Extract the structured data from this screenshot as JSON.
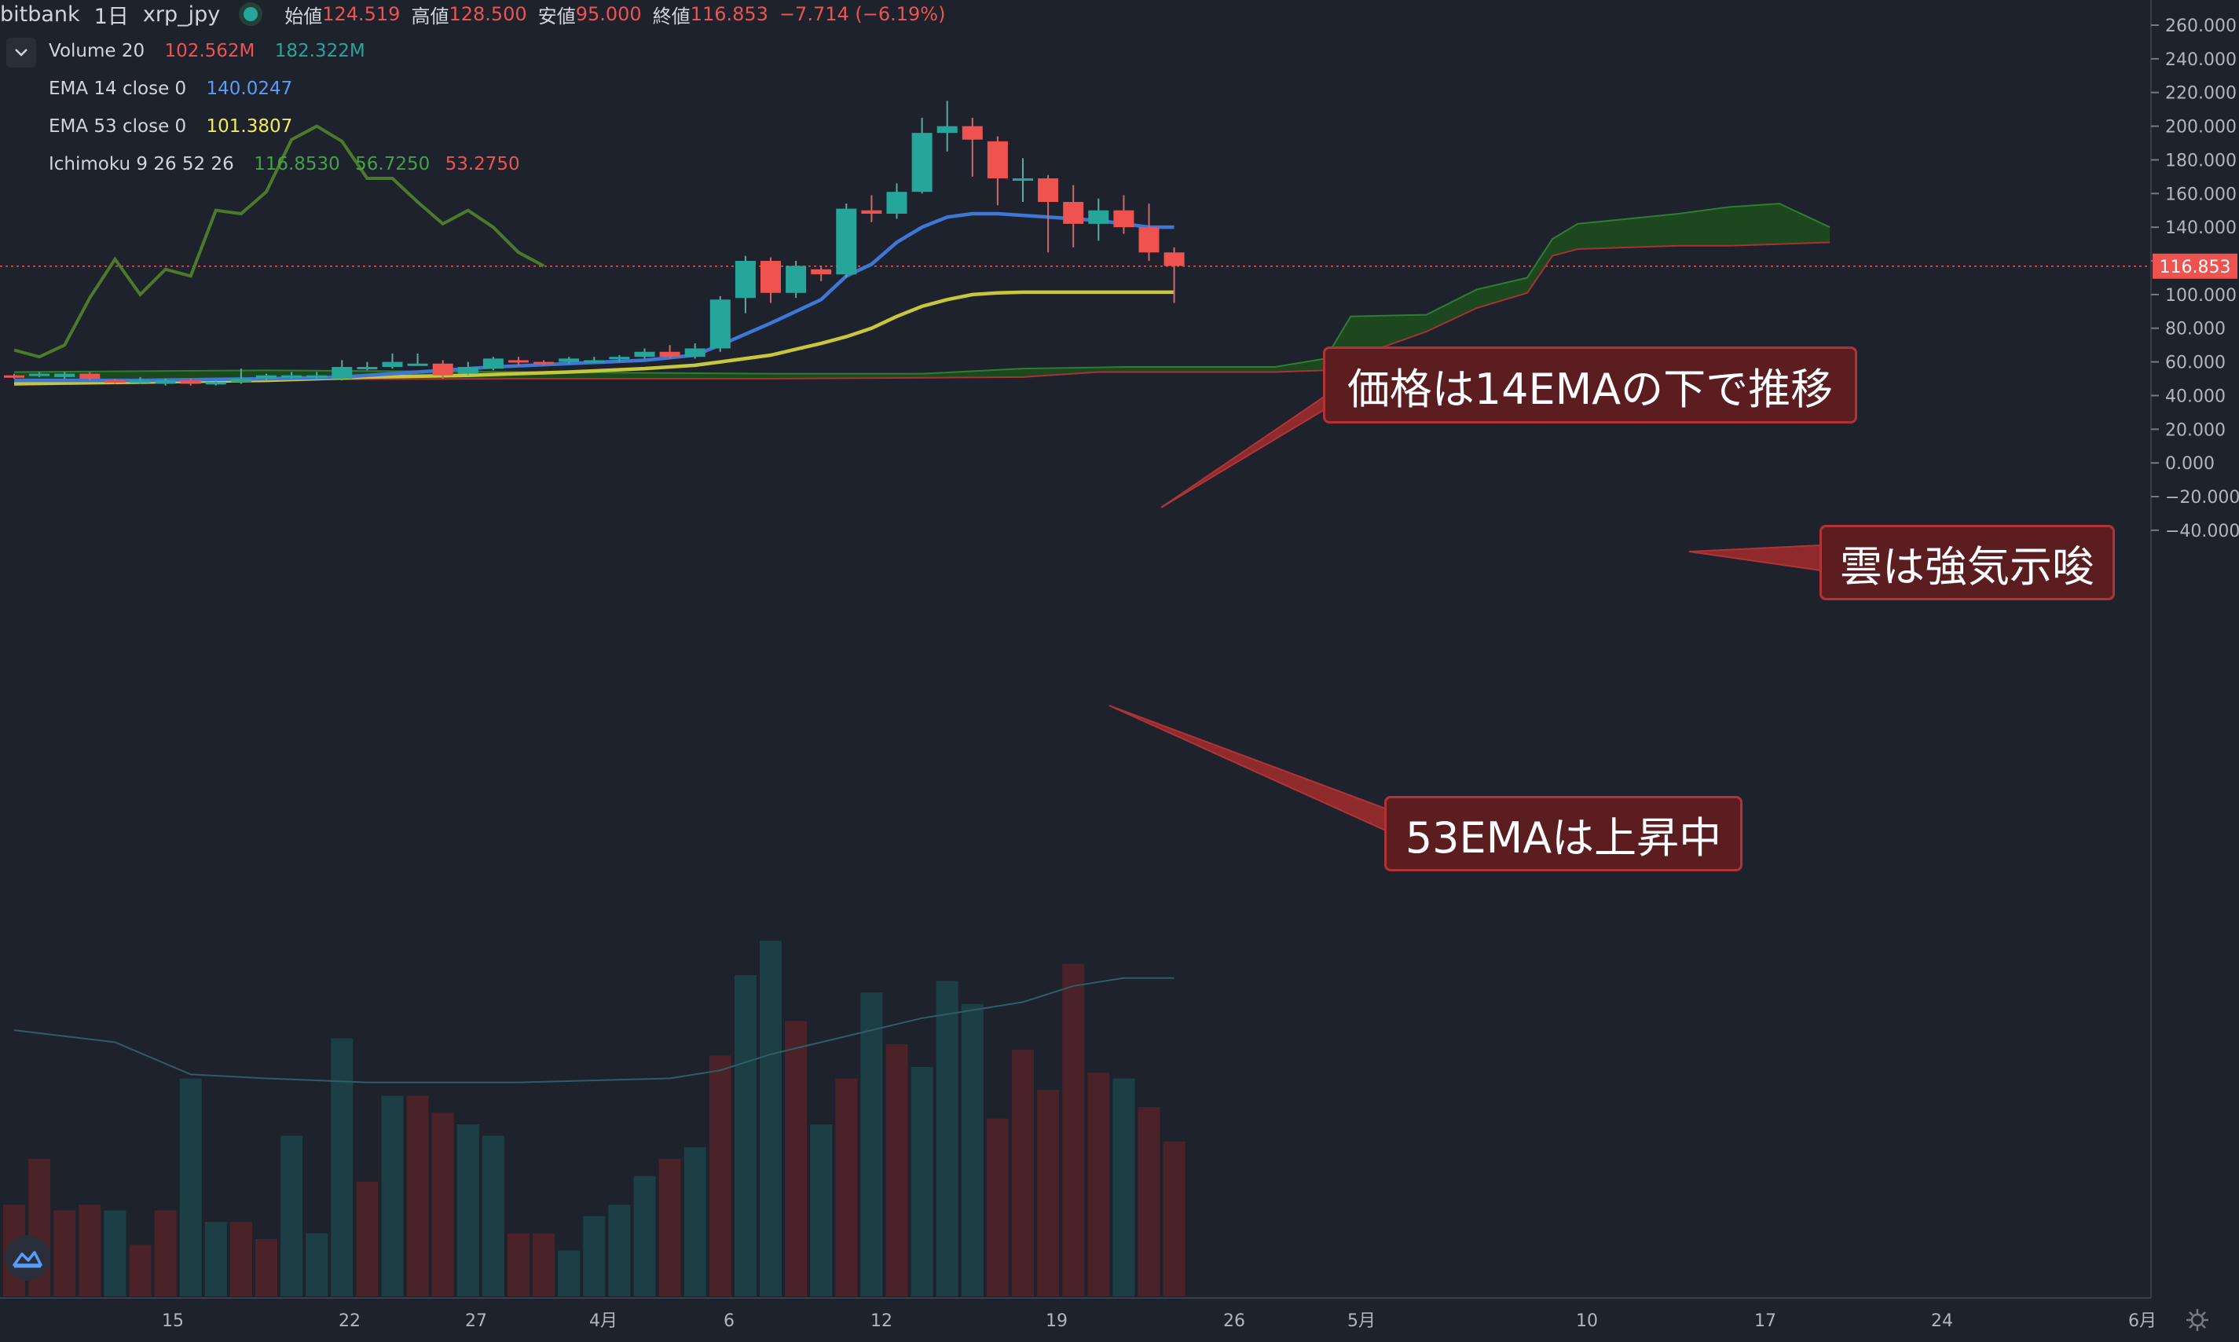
{
  "header": {
    "exchange": "bitbank",
    "interval": "1日",
    "symbol": "xrp_jpy",
    "open_label": "始値",
    "open_value": "124.519",
    "high_label": "高値",
    "high_value": "128.500",
    "low_label": "安値",
    "low_value": "95.000",
    "close_label": "終値",
    "close_value": "116.853",
    "change": "−7.714 (−6.19%)"
  },
  "indicators": [
    {
      "name": "Volume 20",
      "values": [
        "102.562M",
        "182.322M"
      ],
      "colors": [
        "#ef5350",
        "#26a69a"
      ]
    },
    {
      "name": "EMA 14 close 0",
      "values": [
        "140.0247"
      ],
      "colors": [
        "#5b9cf6"
      ]
    },
    {
      "name": "EMA 53 close 0",
      "values": [
        "101.3807"
      ],
      "colors": [
        "#f2ee4f"
      ]
    },
    {
      "name": "Ichimoku 9 26 52 26",
      "values": [
        "116.8530",
        "56.7250",
        "53.2750"
      ],
      "colors": [
        "#43a047",
        "#43a047",
        "#ef5350"
      ]
    }
  ],
  "icons": {
    "collapse": "chevron-down-icon",
    "logo": "tradingview-logo-icon",
    "settings": "gear-icon"
  },
  "annotations": {
    "ema14": "価格は14EMAの下で推移",
    "cloud": "雲は強気示唆",
    "ema53": "53EMAは上昇中"
  },
  "colors": {
    "up": "#26a69a",
    "down": "#ef5350",
    "ema14": "#3f77d6",
    "ema53": "#c8c63a",
    "lagging": "#4c7a2a",
    "cloud": "#1d4a1d",
    "background": "#1e222d",
    "callout": "#5b1d20"
  },
  "chart_data": {
    "type": "candlestick",
    "y_ticks": [
      "260.000",
      "240.000",
      "220.000",
      "200.000",
      "180.000",
      "160.000",
      "140.000",
      "120.000",
      "100.000",
      "80.000",
      "60.000",
      "40.000",
      "20.000",
      "0.000",
      "−20.000",
      "−40.000"
    ],
    "ylim": [
      -42,
      263
    ],
    "x_ticks": [
      "15",
      "22",
      "27",
      "4月",
      "6",
      "12",
      "19",
      "26",
      "5月",
      "10",
      "17",
      "24",
      "6月"
    ],
    "last_price": "116.853",
    "candles": [
      [
        0,
        52,
        51,
        53,
        50
      ],
      [
        1,
        52,
        53,
        54,
        51
      ],
      [
        2,
        51,
        53,
        54,
        50
      ],
      [
        3,
        53,
        50,
        54,
        49
      ],
      [
        4,
        49,
        48,
        50,
        47
      ],
      [
        5,
        48,
        49,
        51,
        47
      ],
      [
        6,
        47,
        49,
        50,
        46
      ],
      [
        7,
        49,
        47,
        50,
        46
      ],
      [
        8,
        47,
        48,
        49,
        46
      ],
      [
        9,
        48,
        50,
        56,
        47
      ],
      [
        10,
        50,
        52,
        53,
        49
      ],
      [
        11,
        52,
        52,
        54,
        50
      ],
      [
        12,
        51,
        52,
        54,
        50
      ],
      [
        13,
        50,
        57,
        61,
        49
      ],
      [
        14,
        56,
        57,
        60,
        55
      ],
      [
        15,
        57,
        60,
        65,
        56
      ],
      [
        16,
        59,
        59,
        65,
        58
      ],
      [
        17,
        59,
        52,
        61,
        50
      ],
      [
        18,
        53,
        57,
        60,
        52
      ],
      [
        19,
        56,
        62,
        63,
        55
      ],
      [
        20,
        61,
        60,
        63,
        58
      ],
      [
        21,
        60,
        59,
        61,
        58
      ],
      [
        22,
        60,
        62,
        63,
        59
      ],
      [
        23,
        61,
        61,
        63,
        60
      ],
      [
        24,
        62,
        63,
        64,
        60
      ],
      [
        25,
        63,
        66,
        68,
        62
      ],
      [
        26,
        66,
        63,
        70,
        62
      ],
      [
        27,
        63,
        68,
        71,
        62
      ],
      [
        28,
        68,
        97,
        99,
        66
      ],
      [
        29,
        98,
        120,
        123,
        89
      ],
      [
        30,
        120,
        101,
        122,
        95
      ],
      [
        31,
        101,
        117,
        120,
        98
      ],
      [
        32,
        115,
        112,
        117,
        108
      ],
      [
        33,
        112,
        151,
        154,
        110
      ],
      [
        34,
        150,
        148,
        159,
        143
      ],
      [
        35,
        148,
        161,
        166,
        145
      ],
      [
        36,
        161,
        196,
        205,
        160
      ],
      [
        37,
        196,
        200,
        215,
        185
      ],
      [
        38,
        200,
        192,
        205,
        170
      ],
      [
        39,
        191,
        169,
        194,
        153
      ],
      [
        40,
        169,
        169,
        181,
        155
      ],
      [
        41,
        169,
        155,
        171,
        125
      ],
      [
        42,
        155,
        142,
        165,
        128
      ],
      [
        43,
        142,
        150,
        157,
        132
      ],
      [
        44,
        150,
        140,
        159,
        136
      ],
      [
        45,
        140,
        125,
        154,
        120
      ],
      [
        46,
        125,
        117,
        128,
        95
      ]
    ],
    "ema14": [
      [
        0,
        49
      ],
      [
        5,
        49
      ],
      [
        10,
        50
      ],
      [
        13,
        51
      ],
      [
        16,
        54
      ],
      [
        19,
        57
      ],
      [
        22,
        59
      ],
      [
        25,
        61
      ],
      [
        27,
        64
      ],
      [
        28,
        70
      ],
      [
        30,
        83
      ],
      [
        32,
        97
      ],
      [
        33,
        111
      ],
      [
        34,
        118
      ],
      [
        35,
        131
      ],
      [
        36,
        140
      ],
      [
        37,
        146
      ],
      [
        38,
        148
      ],
      [
        39,
        148
      ],
      [
        40,
        147
      ],
      [
        41,
        146
      ],
      [
        42,
        145
      ],
      [
        43,
        144
      ],
      [
        44,
        142
      ],
      [
        45,
        140
      ],
      [
        46,
        140
      ]
    ],
    "ema53": [
      [
        0,
        47
      ],
      [
        5,
        48
      ],
      [
        10,
        49
      ],
      [
        14,
        51
      ],
      [
        18,
        52
      ],
      [
        22,
        54
      ],
      [
        25,
        56
      ],
      [
        27,
        58
      ],
      [
        28,
        60
      ],
      [
        30,
        64
      ],
      [
        32,
        71
      ],
      [
        33,
        75
      ],
      [
        34,
        80
      ],
      [
        35,
        87
      ],
      [
        36,
        93
      ],
      [
        37,
        97
      ],
      [
        38,
        100
      ],
      [
        39,
        101
      ],
      [
        40,
        101.4
      ],
      [
        41,
        101.4
      ],
      [
        42,
        101.4
      ],
      [
        43,
        101.4
      ],
      [
        44,
        101.4
      ],
      [
        45,
        101.4
      ],
      [
        46,
        101.4
      ]
    ],
    "lagging_span": [
      [
        0,
        67
      ],
      [
        1,
        63
      ],
      [
        2,
        70
      ],
      [
        3,
        98
      ],
      [
        4,
        121
      ],
      [
        5,
        100
      ],
      [
        6,
        115
      ],
      [
        7,
        111
      ],
      [
        8,
        150
      ],
      [
        9,
        148
      ],
      [
        10,
        161
      ],
      [
        11,
        192
      ],
      [
        12,
        200
      ],
      [
        13,
        191
      ],
      [
        14,
        169
      ],
      [
        15,
        169
      ],
      [
        16,
        155
      ],
      [
        17,
        142
      ],
      [
        18,
        150
      ],
      [
        19,
        140
      ],
      [
        20,
        125
      ],
      [
        21,
        117
      ]
    ],
    "cloud_span_a": [
      [
        0,
        54
      ],
      [
        10,
        55
      ],
      [
        20,
        54
      ],
      [
        30,
        53
      ],
      [
        36,
        53
      ],
      [
        40,
        56
      ],
      [
        44,
        57
      ],
      [
        50,
        57
      ],
      [
        52,
        62
      ],
      [
        53,
        87
      ],
      [
        56,
        88
      ],
      [
        58,
        103
      ],
      [
        60,
        110
      ],
      [
        61,
        133
      ],
      [
        62,
        142
      ],
      [
        64,
        145
      ],
      [
        66,
        148
      ],
      [
        68,
        152
      ],
      [
        70,
        154
      ],
      [
        71,
        147
      ],
      [
        72,
        140
      ]
    ],
    "cloud_span_b": [
      [
        0,
        49
      ],
      [
        20,
        50
      ],
      [
        30,
        50
      ],
      [
        40,
        51
      ],
      [
        43,
        54
      ],
      [
        50,
        54
      ],
      [
        52,
        55
      ],
      [
        53,
        62
      ],
      [
        56,
        78
      ],
      [
        58,
        92
      ],
      [
        60,
        101
      ],
      [
        61,
        123
      ],
      [
        62,
        127
      ],
      [
        64,
        128
      ],
      [
        66,
        129
      ],
      [
        68,
        129
      ],
      [
        70,
        130
      ],
      [
        72,
        131
      ]
    ],
    "volume_bars": [
      [
        0,
        "down",
        16
      ],
      [
        1,
        "down",
        24
      ],
      [
        2,
        "down",
        15
      ],
      [
        3,
        "down",
        16
      ],
      [
        4,
        "up",
        15
      ],
      [
        5,
        "down",
        9
      ],
      [
        6,
        "down",
        15
      ],
      [
        7,
        "up",
        38
      ],
      [
        8,
        "up",
        13
      ],
      [
        9,
        "down",
        13
      ],
      [
        10,
        "down",
        10
      ],
      [
        11,
        "up",
        28
      ],
      [
        12,
        "up",
        11
      ],
      [
        13,
        "up",
        45
      ],
      [
        14,
        "down",
        20
      ],
      [
        15,
        "up",
        35
      ],
      [
        16,
        "down",
        35
      ],
      [
        17,
        "down",
        32
      ],
      [
        18,
        "up",
        30
      ],
      [
        19,
        "up",
        28
      ],
      [
        20,
        "down",
        11
      ],
      [
        21,
        "down",
        11
      ],
      [
        22,
        "up",
        8
      ],
      [
        23,
        "up",
        14
      ],
      [
        24,
        "up",
        16
      ],
      [
        25,
        "up",
        21
      ],
      [
        26,
        "down",
        24
      ],
      [
        27,
        "up",
        26
      ],
      [
        28,
        "down",
        42
      ],
      [
        29,
        "up",
        56
      ],
      [
        30,
        "up",
        62
      ],
      [
        31,
        "down",
        48
      ],
      [
        32,
        "up",
        30
      ],
      [
        33,
        "down",
        38
      ],
      [
        34,
        "up",
        53
      ],
      [
        35,
        "down",
        44
      ],
      [
        36,
        "up",
        40
      ],
      [
        37,
        "up",
        55
      ],
      [
        38,
        "up",
        51
      ],
      [
        39,
        "down",
        31
      ],
      [
        40,
        "down",
        43
      ],
      [
        41,
        "down",
        36
      ],
      [
        42,
        "down",
        58
      ],
      [
        43,
        "down",
        39
      ],
      [
        44,
        "up",
        38
      ],
      [
        45,
        "down",
        33
      ],
      [
        46,
        "down",
        27
      ]
    ],
    "volume_ma": [
      [
        0,
        70
      ],
      [
        4,
        64
      ],
      [
        7,
        48
      ],
      [
        10,
        46
      ],
      [
        14,
        44
      ],
      [
        20,
        44
      ],
      [
        26,
        46
      ],
      [
        28,
        50
      ],
      [
        30,
        58
      ],
      [
        32,
        64
      ],
      [
        34,
        70
      ],
      [
        36,
        76
      ],
      [
        38,
        80
      ],
      [
        40,
        84
      ],
      [
        42,
        92
      ],
      [
        44,
        96
      ],
      [
        46,
        96
      ]
    ]
  }
}
